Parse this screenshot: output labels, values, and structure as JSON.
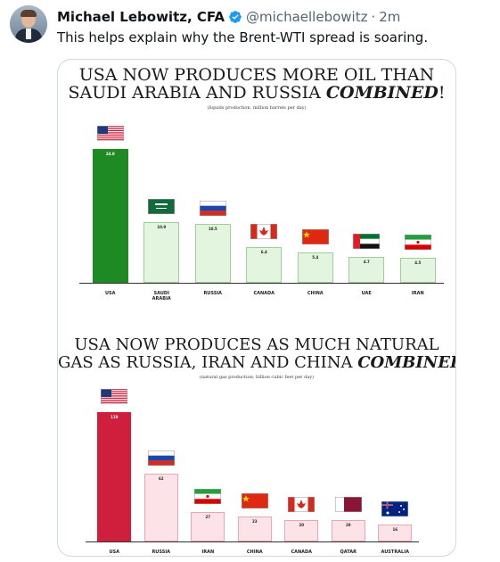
{
  "tweet": {
    "author_name": "Michael Lebowitz, CFA",
    "handle": "@michaellebowitz",
    "separator": "·",
    "time": "2m",
    "text": "This helps explain why the Brent-WTI spread is soaring.",
    "verified_badge_icon": "verified-badge-icon"
  },
  "chart_data": [
    {
      "type": "bar",
      "title_line1": "USA NOW PRODUCES MORE OIL THAN",
      "title_line2_prefix": "SAUDI ARABIA AND RUSSIA ",
      "title_line2_emphasis": "COMBINED",
      "title_line2_suffix": "!",
      "subtitle": "(liquids production, million barrels per day)",
      "categories": [
        "USA",
        "SAUDI ARABIA",
        "RUSSIA",
        "CANADA",
        "CHINA",
        "UAE",
        "IRAN"
      ],
      "category_labels": [
        "USA",
        "SAUDI\nARABIA",
        "RUSSIA",
        "CANADA",
        "CHINA",
        "UAE",
        "IRAN"
      ],
      "values": [
        24.0,
        10.9,
        10.5,
        6.4,
        5.4,
        4.7,
        4.5
      ],
      "value_labels": [
        "24.0",
        "10.9",
        "10.5",
        "6.4",
        "5.4",
        "4.7",
        "4.5"
      ],
      "flags": [
        "usa",
        "saudi",
        "russia",
        "canada",
        "china",
        "uae",
        "iran"
      ],
      "highlight_color": "#1e8a23",
      "bar_color": "#e3f5df",
      "bar_border": "#9fcf98"
    },
    {
      "type": "bar",
      "title_line1": "USA NOW PRODUCES AS MUCH NATURAL",
      "title_line2_prefix": "GAS AS RUSSIA, IRAN AND CHINA ",
      "title_line2_emphasis": "COMBINED",
      "title_line2_suffix": "!",
      "subtitle": "(natural gas production, billion cubic feet per day)",
      "categories": [
        "USA",
        "RUSSIA",
        "IRAN",
        "CHINA",
        "CANADA",
        "QATAR",
        "AUSTRALIA"
      ],
      "category_labels": [
        "USA",
        "RUSSIA",
        "IRAN",
        "CHINA",
        "CANADA",
        "QATAR",
        "AUSTRALIA"
      ],
      "values": [
        119,
        62,
        27,
        23,
        20,
        20,
        16
      ],
      "value_labels": [
        "119",
        "62",
        "27",
        "23",
        "20",
        "20",
        "16"
      ],
      "flags": [
        "usa",
        "russia",
        "iran",
        "china",
        "canada",
        "qatar",
        "australia"
      ],
      "highlight_color": "#cf1f3c",
      "bar_color": "#fbe3e8",
      "bar_border": "#e9a7b5"
    }
  ]
}
